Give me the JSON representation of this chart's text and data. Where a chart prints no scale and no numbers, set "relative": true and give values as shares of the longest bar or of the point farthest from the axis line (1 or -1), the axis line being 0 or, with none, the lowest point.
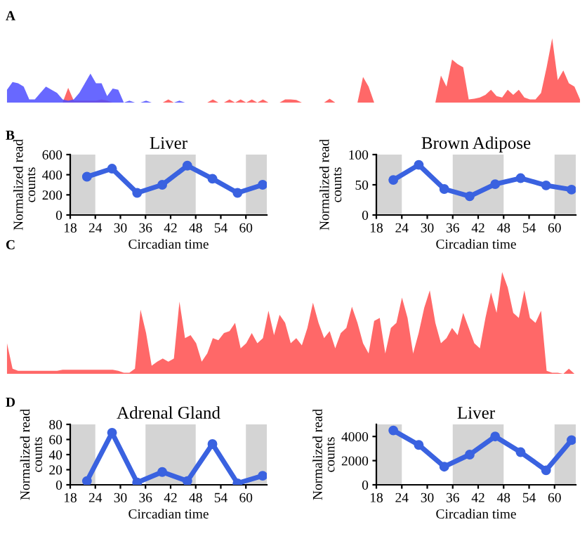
{
  "chart_data": [
    {
      "type": "area",
      "relative": true,
      "annotations": [
        "A"
      ],
      "categories": [
        null,
        null,
        null,
        null,
        null,
        null,
        null,
        null,
        null,
        null,
        null,
        null,
        null,
        null,
        null,
        null,
        null,
        null,
        null,
        null,
        null,
        null,
        null,
        null,
        null,
        null,
        null,
        null,
        null,
        null,
        null,
        null,
        null,
        null,
        null,
        null,
        null,
        null,
        null,
        null,
        null,
        null,
        null,
        null,
        null,
        null,
        null,
        null,
        null,
        null,
        null,
        null,
        null,
        null,
        null,
        null,
        null,
        null,
        null,
        null,
        null,
        null,
        null,
        null,
        null,
        null,
        null,
        null,
        null,
        null,
        null,
        null,
        null,
        null,
        null,
        null,
        null,
        null,
        null,
        null,
        null,
        null,
        null,
        null,
        null,
        null,
        null,
        null,
        null,
        null,
        null,
        null,
        null,
        null,
        null,
        null,
        null,
        null,
        null,
        null,
        null,
        null,
        null,
        null
      ],
      "series": [
        {
          "color": "#ff4d4d",
          "values": [
            0,
            0,
            0,
            0,
            0,
            0,
            0,
            0,
            0,
            0,
            0,
            0.23,
            0.03,
            0.03,
            0.03,
            0.03,
            0.03,
            0.05,
            0.03,
            0,
            0,
            0,
            0,
            0,
            0,
            0,
            0,
            0,
            0,
            0.05,
            0,
            0,
            0,
            0,
            0,
            0,
            0,
            0.05,
            0,
            0,
            0.05,
            0,
            0.05,
            0,
            0.05,
            0,
            0.05,
            0,
            0,
            0,
            0.05,
            0.05,
            0.04,
            0,
            0,
            0,
            0,
            0,
            0.06,
            0,
            0,
            0,
            0,
            0,
            0.4,
            0.25,
            0,
            0,
            0,
            0,
            0,
            0,
            0,
            0,
            0,
            0,
            0,
            0,
            0.42,
            0.25,
            0.67,
            0.6,
            0.55,
            0.05,
            0.06,
            0.08,
            0.12,
            0.2,
            0.1,
            0.08,
            0.2,
            0.12,
            0.2,
            0.08,
            0.05,
            0.05,
            0.15,
            0.55,
            1.0,
            0.35,
            0.5,
            0.3,
            0.25,
            0.05
          ]
        },
        {
          "color": "#4d4dff",
          "values": [
            0.2,
            0.32,
            0.3,
            0.25,
            0.05,
            0.05,
            0.15,
            0.25,
            0.2,
            0.15,
            0.05,
            0.03,
            0.05,
            0.15,
            0.3,
            0.45,
            0.3,
            0.3,
            0.1,
            0.22,
            0.2,
            0,
            0.03,
            0,
            0,
            0.03,
            0,
            0,
            0,
            0,
            0,
            0.03,
            0,
            0,
            0,
            0,
            0,
            0,
            0,
            0,
            0,
            0,
            0,
            0,
            0,
            0,
            0,
            0,
            0,
            0,
            0,
            0,
            0,
            0,
            0,
            0,
            0,
            0,
            0,
            0,
            0,
            0,
            0,
            0,
            0,
            0,
            0,
            0,
            0,
            0,
            0,
            0,
            0,
            0,
            0,
            0,
            0,
            0,
            0,
            0,
            0,
            0,
            0,
            0,
            0,
            0,
            0,
            0,
            0,
            0,
            0,
            0,
            0,
            0,
            0,
            0,
            0,
            0,
            0,
            0,
            0,
            0,
            0,
            0
          ]
        }
      ]
    },
    {
      "type": "line",
      "title": "Liver",
      "xlabel": "Circadian time",
      "ylabel": "Normalized read\ncounts",
      "annotations": [
        "B"
      ],
      "x": [
        22,
        28,
        34,
        40,
        46,
        52,
        58,
        64
      ],
      "xlim": [
        18,
        65
      ],
      "xticks": [
        18,
        24,
        30,
        36,
        42,
        48,
        54,
        60
      ],
      "ylim": [
        0,
        600
      ],
      "yticks": [
        0,
        200,
        400,
        600
      ],
      "marker": "circle",
      "line_style": "solid",
      "grid": false,
      "bands": [
        {
          "axis": "x",
          "from": 18,
          "to": 24,
          "color": "#d4d4d4"
        },
        {
          "axis": "x",
          "from": 36,
          "to": 48,
          "color": "#d4d4d4"
        },
        {
          "axis": "x",
          "from": 60,
          "to": 65,
          "color": "#d4d4d4"
        }
      ],
      "series": [
        {
          "color": "#3a62e0",
          "values": [
            380,
            460,
            220,
            300,
            490,
            360,
            220,
            300
          ]
        }
      ]
    },
    {
      "type": "line",
      "title": "Brown Adipose",
      "xlabel": "Circadian time",
      "ylabel": "Normalized read\ncounts",
      "x": [
        22,
        28,
        34,
        40,
        46,
        52,
        58,
        64
      ],
      "xlim": [
        18,
        65
      ],
      "xticks": [
        18,
        24,
        30,
        36,
        42,
        48,
        54,
        60
      ],
      "ylim": [
        0,
        100
      ],
      "yticks": [
        0,
        50,
        100
      ],
      "marker": "circle",
      "line_style": "solid",
      "grid": false,
      "bands": [
        {
          "axis": "x",
          "from": 18,
          "to": 24,
          "color": "#d4d4d4"
        },
        {
          "axis": "x",
          "from": 36,
          "to": 48,
          "color": "#d4d4d4"
        },
        {
          "axis": "x",
          "from": 60,
          "to": 65,
          "color": "#d4d4d4"
        }
      ],
      "series": [
        {
          "color": "#3a62e0",
          "values": [
            58,
            83,
            43,
            31,
            51,
            61,
            49,
            42
          ]
        }
      ]
    },
    {
      "type": "area",
      "relative": true,
      "annotations": [
        "C"
      ],
      "categories": [
        null,
        null,
        null,
        null,
        null,
        null,
        null,
        null,
        null,
        null,
        null,
        null,
        null,
        null,
        null,
        null,
        null,
        null,
        null,
        null,
        null,
        null,
        null,
        null,
        null,
        null,
        null,
        null,
        null,
        null,
        null,
        null,
        null,
        null,
        null,
        null,
        null,
        null,
        null,
        null,
        null,
        null,
        null,
        null,
        null,
        null,
        null,
        null,
        null,
        null,
        null,
        null,
        null,
        null,
        null,
        null,
        null,
        null,
        null,
        null,
        null,
        null,
        null,
        null,
        null,
        null,
        null,
        null,
        null,
        null,
        null,
        null,
        null,
        null,
        null,
        null,
        null,
        null,
        null,
        null,
        null,
        null,
        null,
        null,
        null,
        null,
        null,
        null,
        null,
        null,
        null,
        null,
        null,
        null,
        null,
        null,
        null,
        null,
        null,
        null,
        null,
        null,
        null,
        null
      ],
      "series": [
        {
          "color": "#ff4d4d",
          "values": [
            0.3,
            0.05,
            0.03,
            0.03,
            0.03,
            0.03,
            0.03,
            0.03,
            0.03,
            0.03,
            0.04,
            0.04,
            0.04,
            0.04,
            0.04,
            0.04,
            0.04,
            0.04,
            0.04,
            0.04,
            0.03,
            0.01,
            0.01,
            0.05,
            0.63,
            0.4,
            0.08,
            0.12,
            0.15,
            0.12,
            0.15,
            0.71,
            0.35,
            0.38,
            0.3,
            0.12,
            0.2,
            0.35,
            0.33,
            0.4,
            0.42,
            0.5,
            0.25,
            0.3,
            0.4,
            0.3,
            0.35,
            0.62,
            0.38,
            0.58,
            0.5,
            0.3,
            0.35,
            0.28,
            0.45,
            0.7,
            0.5,
            0.35,
            0.42,
            0.25,
            0.4,
            0.45,
            0.66,
            0.5,
            0.3,
            0.2,
            0.52,
            0.55,
            0.2,
            0.45,
            0.5,
            0.75,
            0.55,
            0.2,
            0.4,
            0.65,
            0.82,
            0.5,
            0.3,
            0.35,
            0.45,
            0.38,
            0.6,
            0.45,
            0.3,
            0.25,
            0.55,
            0.8,
            0.6,
            1.0,
            0.85,
            0.6,
            0.55,
            0.82,
            0.55,
            0.5,
            0.62,
            0.03,
            0.01,
            0.01,
            0,
            0.05,
            0,
            0
          ]
        }
      ]
    },
    {
      "type": "line",
      "title": "Adrenal Gland",
      "xlabel": "Circadian time",
      "ylabel": "Normalized read\ncounts",
      "annotations": [
        "D"
      ],
      "x": [
        22,
        28,
        34,
        40,
        46,
        52,
        58,
        64
      ],
      "xlim": [
        18,
        65
      ],
      "xticks": [
        18,
        24,
        30,
        36,
        42,
        48,
        54,
        60
      ],
      "ylim": [
        0,
        80
      ],
      "yticks": [
        0,
        20,
        40,
        60,
        80
      ],
      "marker": "circle",
      "line_style": "solid",
      "grid": false,
      "bands": [
        {
          "axis": "x",
          "from": 18,
          "to": 24,
          "color": "#d4d4d4"
        },
        {
          "axis": "x",
          "from": 36,
          "to": 48,
          "color": "#d4d4d4"
        },
        {
          "axis": "x",
          "from": 60,
          "to": 65,
          "color": "#d4d4d4"
        }
      ],
      "series": [
        {
          "color": "#3a62e0",
          "values": [
            5,
            69,
            3,
            17,
            5,
            54,
            2,
            12
          ]
        }
      ]
    },
    {
      "type": "line",
      "title": "Liver",
      "xlabel": "Circadian time",
      "ylabel": "Normalized read\ncounts",
      "x": [
        22,
        28,
        34,
        40,
        46,
        52,
        58,
        64
      ],
      "xlim": [
        18,
        65
      ],
      "xticks": [
        18,
        24,
        30,
        36,
        42,
        48,
        54,
        60
      ],
      "ylim": [
        0,
        5000
      ],
      "yticks": [
        0,
        2000,
        4000
      ],
      "marker": "circle",
      "line_style": "solid",
      "grid": false,
      "bands": [
        {
          "axis": "x",
          "from": 18,
          "to": 24,
          "color": "#d4d4d4"
        },
        {
          "axis": "x",
          "from": 36,
          "to": 48,
          "color": "#d4d4d4"
        },
        {
          "axis": "x",
          "from": 60,
          "to": 65,
          "color": "#d4d4d4"
        }
      ],
      "series": [
        {
          "color": "#3a62e0",
          "values": [
            4500,
            3300,
            1500,
            2500,
            4000,
            2700,
            1200,
            3700
          ]
        }
      ]
    }
  ]
}
